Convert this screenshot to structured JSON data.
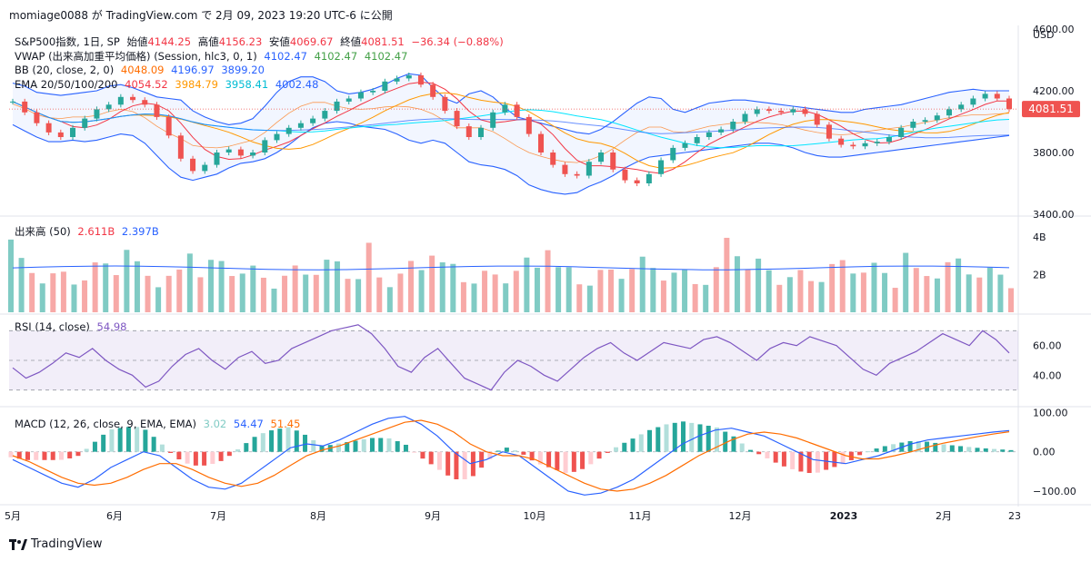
{
  "header": {
    "published": "momiage0088 が TradingView.com で 2月 09, 2023 19:20 UTC-6 に公開"
  },
  "legend": {
    "main": {
      "symbol": "S&P500指数, 1日, SP",
      "open_label": "始値",
      "open": "4144.25",
      "high_label": "高値",
      "high": "4156.23",
      "low_label": "安値",
      "low": "4069.67",
      "close_label": "終値",
      "close": "4081.51",
      "change": "−36.34 (−0.88%)"
    },
    "vwap": {
      "label": "VWAP (出来高加重平均価格) (Session, hlc3, 0, 1)",
      "v1": "4102.47",
      "v2": "4102.47",
      "v3": "4102.47"
    },
    "bb": {
      "label": "BB (20, close, 2, 0)",
      "basis": "4048.09",
      "upper": "4196.97",
      "lower": "3899.20"
    },
    "ema": {
      "label": "EMA 20/50/100/200",
      "e20": "4054.52",
      "e50": "3984.79",
      "e100": "3958.41",
      "e200": "4002.48"
    },
    "volume": {
      "label": "出来高 (50)",
      "v1": "2.611B",
      "v2": "2.397B"
    },
    "rsi": {
      "label": "RSI (14, close)",
      "value": "54.98"
    },
    "macd": {
      "label": "MACD (12, 26, close, 9, EMA, EMA)",
      "hist": "3.02",
      "macd": "54.47",
      "signal": "51.45"
    }
  },
  "axis": {
    "currency": "USD",
    "price_ticks": [
      "4600.00",
      "4200.00",
      "3800.00",
      "3400.00"
    ],
    "price_tag": "4081.51",
    "volume_ticks": [
      "4B",
      "2B"
    ],
    "rsi_ticks": [
      "60.00",
      "40.00"
    ],
    "macd_ticks": [
      "100.00",
      "0.00",
      "−100.00"
    ],
    "months": [
      "5月",
      "6月",
      "7月",
      "8月",
      "9月",
      "10月",
      "11月",
      "12月",
      "2023",
      "2月",
      "23"
    ]
  },
  "colors": {
    "up": "#26a69a",
    "down": "#ef5350",
    "bb": "#2962ff",
    "vwap": "#2962ff",
    "ema20": "#f23645",
    "ema50": "#ff9800",
    "ema100": "#00e5ff",
    "ema200": "#2962ff",
    "rsi": "#7e57c2",
    "macd": "#2962ff",
    "signal": "#ff6d00"
  },
  "footer": {
    "brand": "TradingView"
  },
  "chart_data": {
    "type": "line",
    "x_range": [
      "2022-05",
      "2023-02-09"
    ],
    "price": {
      "ylim": [
        3400,
        4600
      ],
      "close": [
        4130,
        4060,
        3990,
        3930,
        3900,
        3960,
        4020,
        4080,
        4110,
        4160,
        4140,
        4110,
        4030,
        3910,
        3760,
        3680,
        3720,
        3800,
        3820,
        3780,
        3800,
        3880,
        3920,
        3960,
        3990,
        4020,
        4070,
        4130,
        4150,
        4190,
        4200,
        4260,
        4280,
        4300,
        4240,
        4160,
        4070,
        3970,
        3900,
        3960,
        4060,
        4110,
        4030,
        3920,
        3800,
        3720,
        3660,
        3650,
        3740,
        3800,
        3690,
        3620,
        3600,
        3660,
        3750,
        3830,
        3860,
        3900,
        3930,
        3950,
        4000,
        4050,
        4080,
        4070,
        4060,
        4080,
        4050,
        3980,
        3890,
        3850,
        3840,
        3860,
        3870,
        3900,
        3960,
        4000,
        4010,
        4040,
        4080,
        4110,
        4150,
        4180,
        4150,
        4081
      ],
      "bb_upper": [
        4250,
        4230,
        4190,
        4180,
        4170,
        4180,
        4190,
        4200,
        4230,
        4240,
        4220,
        4190,
        4160,
        4150,
        4140,
        4070,
        4030,
        4000,
        3980,
        3990,
        4020,
        4100,
        4190,
        4260,
        4290,
        4290,
        4260,
        4200,
        4180,
        4190,
        4210,
        4240,
        4280,
        4310,
        4300,
        4220,
        4150,
        4120,
        4180,
        4200,
        4160,
        4090,
        4030,
        4010,
        3990,
        3970,
        3950,
        3930,
        3920,
        3950,
        4000,
        4060,
        4120,
        4160,
        4150,
        4080,
        4060,
        4090,
        4120,
        4130,
        4140,
        4140,
        4130,
        4120,
        4110,
        4100,
        4090,
        4080,
        4070,
        4060,
        4060,
        4080,
        4090,
        4100,
        4110,
        4130,
        4150,
        4170,
        4190,
        4200,
        4210,
        4200,
        4200,
        4200
      ],
      "bb_lower": [
        3980,
        3940,
        3900,
        3870,
        3870,
        3880,
        3870,
        3880,
        3900,
        3920,
        3910,
        3860,
        3780,
        3700,
        3640,
        3620,
        3640,
        3660,
        3700,
        3730,
        3740,
        3760,
        3800,
        3850,
        3910,
        3960,
        3990,
        4000,
        3990,
        3970,
        3960,
        3950,
        3920,
        3880,
        3860,
        3880,
        3860,
        3800,
        3740,
        3720,
        3710,
        3690,
        3650,
        3590,
        3560,
        3540,
        3530,
        3540,
        3580,
        3610,
        3650,
        3700,
        3740,
        3770,
        3780,
        3790,
        3800,
        3810,
        3820,
        3830,
        3840,
        3850,
        3860,
        3860,
        3850,
        3830,
        3800,
        3780,
        3770,
        3770,
        3780,
        3790,
        3800,
        3810,
        3820,
        3830,
        3840,
        3850,
        3860,
        3870,
        3880,
        3890,
        3900,
        3910
      ]
    },
    "volume": {
      "ylim": [
        0,
        5
      ],
      "unit": "B"
    },
    "rsi": {
      "ylim": [
        20,
        80
      ],
      "values": [
        45,
        38,
        42,
        48,
        55,
        52,
        58,
        50,
        44,
        40,
        32,
        36,
        46,
        54,
        58,
        50,
        44,
        52,
        56,
        48,
        50,
        58,
        62,
        66,
        70,
        72,
        74,
        68,
        58,
        46,
        42,
        52,
        58,
        48,
        38,
        34,
        30,
        42,
        50,
        46,
        40,
        36,
        44,
        52,
        58,
        62,
        55,
        50,
        56,
        62,
        60,
        58,
        64,
        66,
        62,
        56,
        50,
        58,
        62,
        60,
        66,
        63,
        60,
        52,
        44,
        40,
        48,
        52,
        56,
        62,
        68,
        64,
        60,
        70,
        64,
        55
      ]
    },
    "macd": {
      "ylim": [
        -130,
        110
      ],
      "macd": [
        -20,
        -40,
        -60,
        -80,
        -90,
        -70,
        -40,
        -20,
        0,
        -10,
        -40,
        -70,
        -90,
        -95,
        -80,
        -50,
        -20,
        10,
        20,
        15,
        30,
        50,
        70,
        85,
        90,
        70,
        40,
        0,
        -30,
        -20,
        0,
        -10,
        -40,
        -70,
        -100,
        -110,
        -105,
        -90,
        -70,
        -40,
        -10,
        20,
        40,
        55,
        60,
        50,
        40,
        20,
        0,
        -20,
        -25,
        -30,
        -20,
        -10,
        5,
        20,
        30,
        35,
        40,
        45,
        50,
        54
      ],
      "signal": [
        -10,
        -25,
        -45,
        -65,
        -80,
        -85,
        -80,
        -65,
        -45,
        -30,
        -30,
        -45,
        -65,
        -80,
        -88,
        -80,
        -60,
        -35,
        -10,
        5,
        15,
        30,
        45,
        60,
        75,
        80,
        70,
        50,
        20,
        0,
        -10,
        -10,
        -20,
        -40,
        -60,
        -80,
        -95,
        -100,
        -95,
        -80,
        -60,
        -35,
        -10,
        10,
        30,
        45,
        50,
        45,
        35,
        20,
        5,
        -10,
        -18,
        -18,
        -10,
        0,
        12,
        22,
        30,
        38,
        45,
        51
      ]
    }
  }
}
